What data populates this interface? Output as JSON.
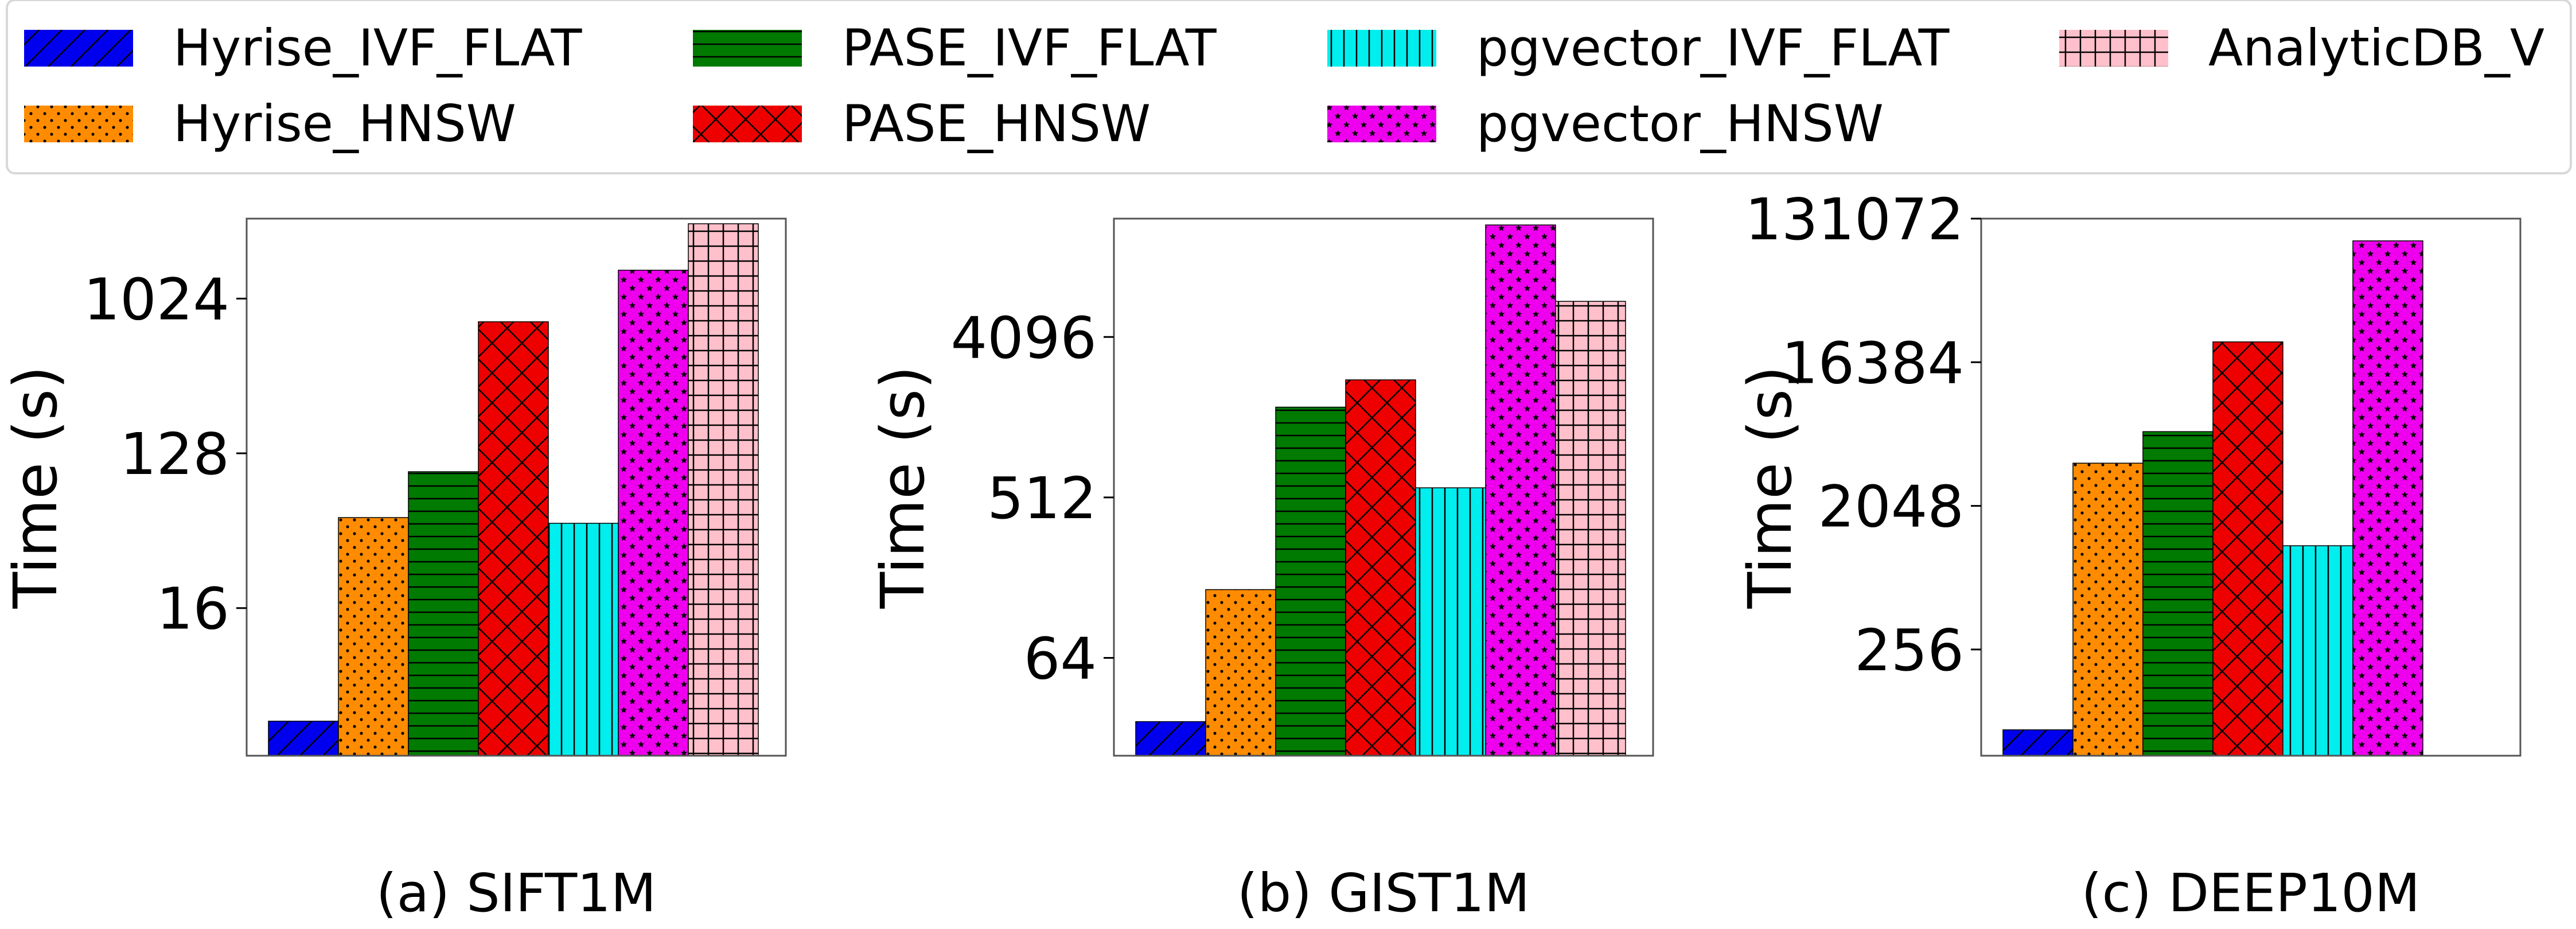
{
  "legend": {
    "items": [
      {
        "name": "Hyrise_IVF_FLAT",
        "color": "#0000ee",
        "pattern": "diag"
      },
      {
        "name": "PASE_IVF_FLAT",
        "color": "#007a00",
        "pattern": "hlines"
      },
      {
        "name": "pgvector_IVF_FLAT",
        "color": "#00eeee",
        "pattern": "vlines"
      },
      {
        "name": "AnalyticDB_V",
        "color": "#ffc0cb",
        "pattern": "grid"
      },
      {
        "name": "Hyrise_HNSW",
        "color": "#ff8c00",
        "pattern": "dots"
      },
      {
        "name": "PASE_HNSW",
        "color": "#ee0000",
        "pattern": "cross"
      },
      {
        "name": "pgvector_HNSW",
        "color": "#ee00ee",
        "pattern": "stars"
      }
    ]
  },
  "chart_data": [
    {
      "type": "bar",
      "title": "(a) SIFT1M",
      "ylabel": "Time (s)",
      "yscale": "log2",
      "ylim": [
        2.2,
        3000
      ],
      "yticks": [
        16,
        128,
        1024
      ],
      "ytick_labels": [
        "16",
        "128",
        "1024"
      ],
      "series": [
        {
          "name": "Hyrise_IVF_FLAT",
          "value": 3.5
        },
        {
          "name": "Hyrise_HNSW",
          "value": 54
        },
        {
          "name": "PASE_IVF_FLAT",
          "value": 100
        },
        {
          "name": "PASE_HNSW",
          "value": 750
        },
        {
          "name": "pgvector_IVF_FLAT",
          "value": 50
        },
        {
          "name": "pgvector_HNSW",
          "value": 1500
        },
        {
          "name": "AnalyticDB_V",
          "value": 2800
        }
      ]
    },
    {
      "type": "bar",
      "title": "(b) GIST1M",
      "ylabel": "Time (s)",
      "yscale": "log2",
      "ylim": [
        18,
        19000
      ],
      "yticks": [
        64,
        512,
        4096
      ],
      "ytick_labels": [
        "64",
        "512",
        "4096"
      ],
      "series": [
        {
          "name": "Hyrise_IVF_FLAT",
          "value": 28
        },
        {
          "name": "Hyrise_HNSW",
          "value": 155
        },
        {
          "name": "PASE_IVF_FLAT",
          "value": 1650
        },
        {
          "name": "PASE_HNSW",
          "value": 2350
        },
        {
          "name": "pgvector_IVF_FLAT",
          "value": 580
        },
        {
          "name": "pgvector_HNSW",
          "value": 17500
        },
        {
          "name": "AnalyticDB_V",
          "value": 6500
        }
      ]
    },
    {
      "type": "bar",
      "title": "(c) DEEP10M",
      "ylabel": "Time (s)",
      "yscale": "log2",
      "ylim": [
        55,
        131072
      ],
      "yticks": [
        256,
        2048,
        16384,
        131072
      ],
      "ytick_labels": [
        "256",
        "2048",
        "16384",
        "131072"
      ],
      "series": [
        {
          "name": "Hyrise_IVF_FLAT",
          "value": 80
        },
        {
          "name": "Hyrise_HNSW",
          "value": 3800
        },
        {
          "name": "PASE_IVF_FLAT",
          "value": 6000
        },
        {
          "name": "PASE_HNSW",
          "value": 22000
        },
        {
          "name": "pgvector_IVF_FLAT",
          "value": 1150
        },
        {
          "name": "pgvector_HNSW",
          "value": 95000
        }
      ]
    }
  ]
}
